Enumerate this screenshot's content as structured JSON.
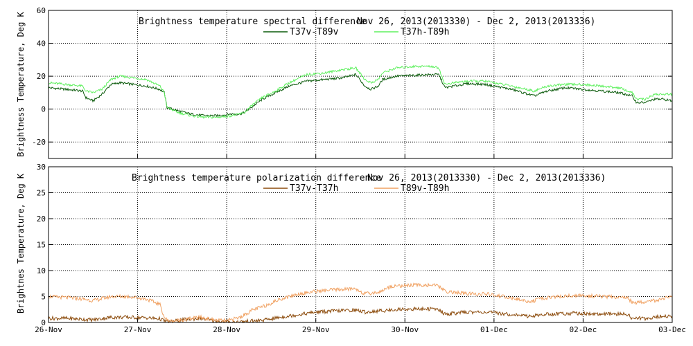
{
  "chart_data": [
    {
      "type": "line",
      "title": "Brightness temperature spectral difference",
      "date_range": "Nov 26, 2013(2013330) - Dec  2, 2013(2013336)",
      "ylabel": "Brightness Temperature, Deg K",
      "ylim": [
        -30,
        60
      ],
      "yticks": [
        -20,
        0,
        20,
        40,
        60
      ],
      "xlim": [
        0,
        7
      ],
      "xticks": [
        "26-Nov",
        "27-Nov",
        "28-Nov",
        "29-Nov",
        "30-Nov",
        "01-Dec",
        "02-Dec",
        "03-Dec"
      ],
      "grid": true,
      "legend_position": "top-center",
      "series": [
        {
          "name": "T37v-T89v",
          "color": "#0a5a0a",
          "points": [
            [
              0,
              13
            ],
            [
              0.2,
              12
            ],
            [
              0.38,
              11
            ],
            [
              0.42,
              7
            ],
            [
              0.5,
              5
            ],
            [
              0.6,
              9
            ],
            [
              0.7,
              15
            ],
            [
              0.8,
              16
            ],
            [
              0.95,
              15
            ],
            [
              1.1,
              14
            ],
            [
              1.25,
              12
            ],
            [
              1.3,
              10
            ],
            [
              1.33,
              1
            ],
            [
              1.45,
              -1
            ],
            [
              1.6,
              -3
            ],
            [
              1.75,
              -4
            ],
            [
              1.9,
              -4
            ],
            [
              2.05,
              -3
            ],
            [
              2.15,
              -3
            ],
            [
              2.2,
              -2
            ],
            [
              2.3,
              2
            ],
            [
              2.4,
              6
            ],
            [
              2.55,
              10
            ],
            [
              2.7,
              14
            ],
            [
              2.9,
              17
            ],
            [
              3.1,
              18
            ],
            [
              3.3,
              19
            ],
            [
              3.45,
              21
            ],
            [
              3.55,
              14
            ],
            [
              3.62,
              12
            ],
            [
              3.7,
              14
            ],
            [
              3.75,
              18
            ],
            [
              3.9,
              20
            ],
            [
              4.1,
              20.5
            ],
            [
              4.3,
              21
            ],
            [
              4.38,
              21
            ],
            [
              4.45,
              13
            ],
            [
              4.55,
              14
            ],
            [
              4.7,
              15.5
            ],
            [
              4.9,
              15
            ],
            [
              5.0,
              14
            ],
            [
              5.2,
              12
            ],
            [
              5.45,
              8
            ],
            [
              5.6,
              11
            ],
            [
              5.8,
              13
            ],
            [
              6.0,
              12
            ],
            [
              6.2,
              11
            ],
            [
              6.4,
              10
            ],
            [
              6.55,
              8
            ],
            [
              6.6,
              4
            ],
            [
              6.7,
              4
            ],
            [
              6.8,
              6
            ],
            [
              6.9,
              6
            ],
            [
              7.0,
              5
            ]
          ]
        },
        {
          "name": "T37h-T89h",
          "color": "#5ef05e",
          "points": [
            [
              0,
              16
            ],
            [
              0.2,
              15
            ],
            [
              0.38,
              14
            ],
            [
              0.42,
              11
            ],
            [
              0.5,
              10
            ],
            [
              0.6,
              12
            ],
            [
              0.7,
              18
            ],
            [
              0.8,
              20
            ],
            [
              0.95,
              19
            ],
            [
              1.1,
              18
            ],
            [
              1.25,
              14
            ],
            [
              1.3,
              10
            ],
            [
              1.33,
              1
            ],
            [
              1.45,
              -2
            ],
            [
              1.6,
              -4
            ],
            [
              1.75,
              -5
            ],
            [
              1.9,
              -5
            ],
            [
              2.05,
              -4
            ],
            [
              2.15,
              -3
            ],
            [
              2.2,
              -2
            ],
            [
              2.3,
              3
            ],
            [
              2.4,
              7
            ],
            [
              2.55,
              11
            ],
            [
              2.7,
              16
            ],
            [
              2.9,
              21
            ],
            [
              3.1,
              22
            ],
            [
              3.3,
              24
            ],
            [
              3.45,
              25
            ],
            [
              3.55,
              18
            ],
            [
              3.62,
              16
            ],
            [
              3.7,
              18
            ],
            [
              3.75,
              22
            ],
            [
              3.9,
              25
            ],
            [
              4.1,
              26
            ],
            [
              4.3,
              26
            ],
            [
              4.38,
              25
            ],
            [
              4.45,
              15
            ],
            [
              4.55,
              16
            ],
            [
              4.7,
              17
            ],
            [
              4.9,
              17
            ],
            [
              5.0,
              16
            ],
            [
              5.2,
              14
            ],
            [
              5.45,
              11
            ],
            [
              5.6,
              14
            ],
            [
              5.8,
              15
            ],
            [
              6.0,
              15
            ],
            [
              6.2,
              14
            ],
            [
              6.4,
              13
            ],
            [
              6.55,
              10
            ],
            [
              6.6,
              6
            ],
            [
              6.7,
              6
            ],
            [
              6.8,
              9
            ],
            [
              6.9,
              9
            ],
            [
              7.0,
              9
            ]
          ]
        }
      ]
    },
    {
      "type": "line",
      "title": "Brightness temperature polarization difference",
      "date_range": "Nov 26, 2013(2013330) - Dec  2, 2013(2013336)",
      "ylabel": "Brightnes Temperature, Deg K",
      "ylim": [
        0,
        30
      ],
      "yticks": [
        0,
        5,
        10,
        15,
        20,
        25,
        30
      ],
      "xlim": [
        0,
        7
      ],
      "xticks": [
        "26-Nov",
        "27-Nov",
        "28-Nov",
        "29-Nov",
        "30-Nov",
        "01-Dec",
        "02-Dec",
        "03-Dec"
      ],
      "grid": true,
      "legend_position": "top-center",
      "series": [
        {
          "name": "T37v-T37h",
          "color": "#8b4a0a",
          "points": [
            [
              0,
              0.8
            ],
            [
              0.2,
              0.8
            ],
            [
              0.4,
              0.6
            ],
            [
              0.5,
              0.5
            ],
            [
              0.7,
              1.0
            ],
            [
              0.9,
              1.0
            ],
            [
              1.1,
              0.9
            ],
            [
              1.25,
              0.7
            ],
            [
              1.3,
              0.3
            ],
            [
              1.35,
              0.1
            ],
            [
              1.5,
              0.5
            ],
            [
              1.7,
              0.8
            ],
            [
              1.85,
              0.3
            ],
            [
              2.0,
              0.1
            ],
            [
              2.15,
              0.1
            ],
            [
              2.2,
              0.2
            ],
            [
              2.4,
              0.4
            ],
            [
              2.6,
              1.0
            ],
            [
              2.8,
              1.5
            ],
            [
              3.0,
              2.0
            ],
            [
              3.2,
              2.2
            ],
            [
              3.45,
              2.4
            ],
            [
              3.55,
              2.0
            ],
            [
              3.7,
              2.2
            ],
            [
              3.9,
              2.5
            ],
            [
              4.1,
              2.6
            ],
            [
              4.3,
              2.6
            ],
            [
              4.38,
              2.5
            ],
            [
              4.45,
              1.6
            ],
            [
              4.7,
              2.0
            ],
            [
              4.9,
              2.0
            ],
            [
              5.1,
              1.7
            ],
            [
              5.4,
              1.2
            ],
            [
              5.6,
              1.6
            ],
            [
              5.9,
              1.8
            ],
            [
              6.2,
              1.6
            ],
            [
              6.5,
              1.6
            ],
            [
              6.55,
              0.8
            ],
            [
              6.7,
              0.8
            ],
            [
              6.9,
              1.2
            ],
            [
              7.0,
              1.2
            ]
          ]
        },
        {
          "name": "T89v-T89h",
          "color": "#f0a060",
          "points": [
            [
              0,
              5.0
            ],
            [
              0.2,
              4.8
            ],
            [
              0.4,
              4.5
            ],
            [
              0.5,
              4.2
            ],
            [
              0.7,
              5.0
            ],
            [
              0.9,
              5.0
            ],
            [
              1.1,
              4.5
            ],
            [
              1.25,
              3.5
            ],
            [
              1.3,
              1.0
            ],
            [
              1.35,
              0.2
            ],
            [
              1.5,
              0.5
            ],
            [
              1.7,
              1.0
            ],
            [
              1.85,
              0.5
            ],
            [
              2.0,
              0.3
            ],
            [
              2.15,
              1.0
            ],
            [
              2.2,
              1.5
            ],
            [
              2.3,
              2.5
            ],
            [
              2.4,
              3.0
            ],
            [
              2.6,
              4.5
            ],
            [
              2.8,
              5.5
            ],
            [
              3.0,
              6.0
            ],
            [
              3.2,
              6.3
            ],
            [
              3.45,
              6.5
            ],
            [
              3.55,
              5.5
            ],
            [
              3.7,
              5.8
            ],
            [
              3.85,
              7.0
            ],
            [
              4.1,
              7.2
            ],
            [
              4.3,
              7.2
            ],
            [
              4.38,
              7.0
            ],
            [
              4.45,
              6.0
            ],
            [
              4.7,
              5.5
            ],
            [
              4.9,
              5.5
            ],
            [
              5.1,
              5.0
            ],
            [
              5.4,
              4.0
            ],
            [
              5.6,
              4.8
            ],
            [
              5.9,
              5.2
            ],
            [
              6.2,
              5.0
            ],
            [
              6.5,
              4.8
            ],
            [
              6.55,
              3.8
            ],
            [
              6.7,
              4.0
            ],
            [
              6.9,
              4.5
            ],
            [
              7.0,
              5.0
            ]
          ]
        }
      ]
    }
  ]
}
